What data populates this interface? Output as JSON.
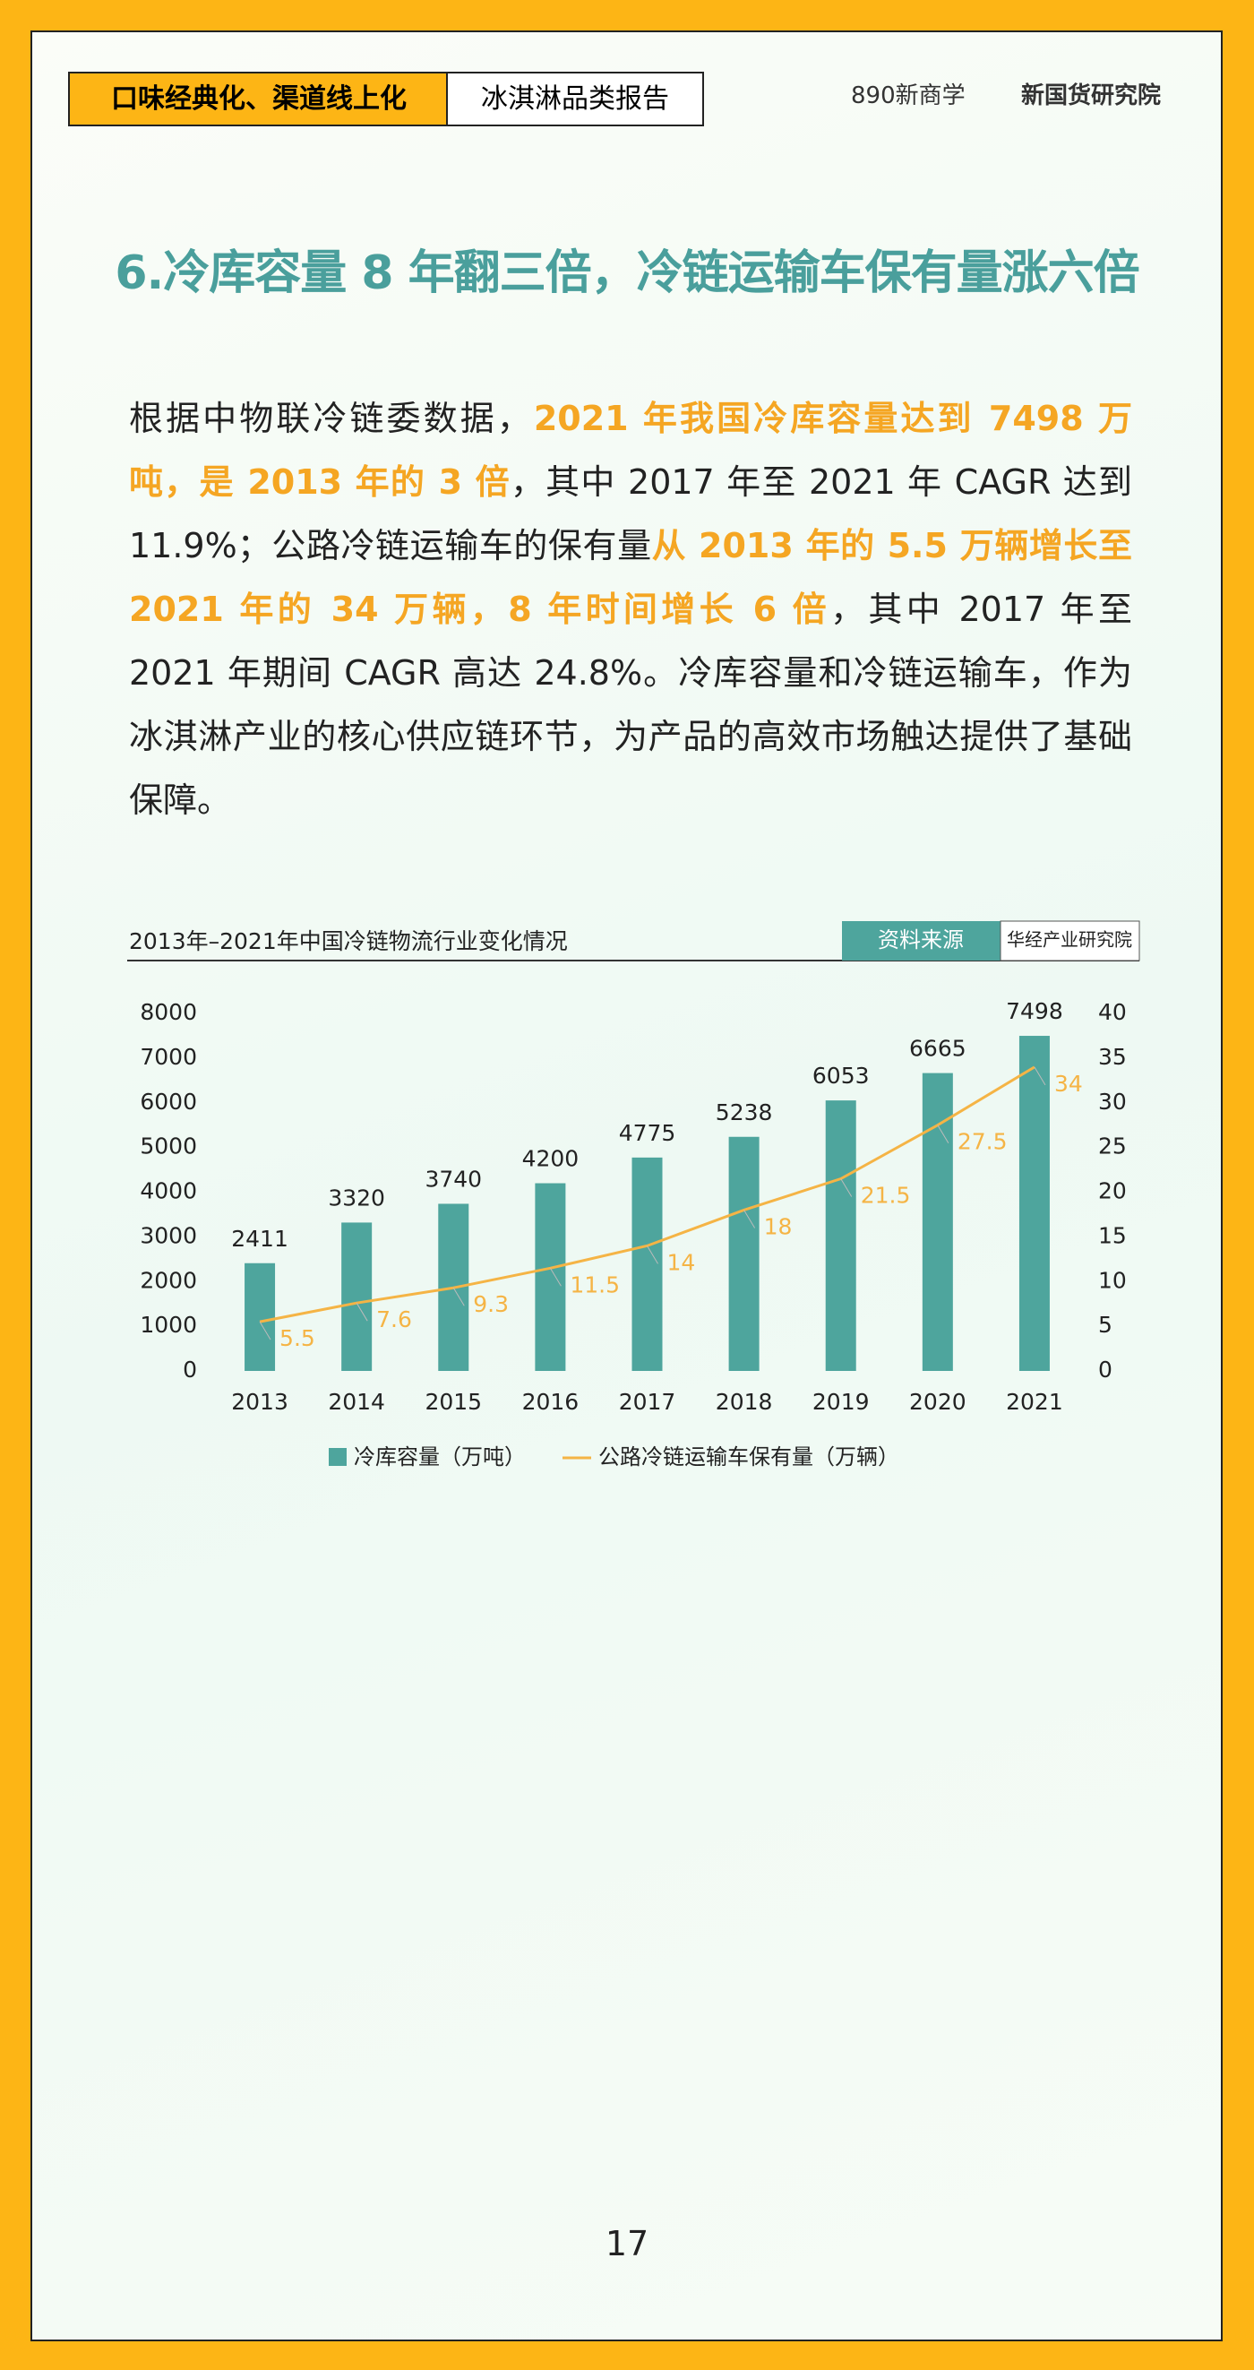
{
  "header": {
    "tag": "口味经典化、渠道线上化",
    "report": "冰淇淋品类报告",
    "logos": [
      "890新商学",
      "新国货研究院"
    ]
  },
  "title": "6.冷库容量 8 年翻三倍，冷链运输车保有量涨六倍",
  "paragraph": [
    {
      "text": "根据中物联冷链委数据，",
      "highlight": false
    },
    {
      "text": "2021 年我国冷库容量达到 7498 万吨，是 2013 年的 3 倍",
      "highlight": true
    },
    {
      "text": "，其中 2017 年至 2021 年 CAGR 达到 11.9%；公路冷链运输车的保有量",
      "highlight": false
    },
    {
      "text": "从 2013 年的 5.5 万辆增长至 2021 年的 34 万辆，8 年时间增长 6 倍",
      "highlight": true
    },
    {
      "text": "，其中 2017 年至 2021 年期间 CAGR 高达 24.8%。冷库容量和冷链运输车，作为冰淇淋产业的核心供应链环节，为产品的高效市场触达提供了基础保障。",
      "highlight": false
    }
  ],
  "chart_data": {
    "type": "bar",
    "title": "2013年–2021年中国冷链物流行业变化情况",
    "source_label": "资料来源",
    "source": "华经产业研究院",
    "categories": [
      "2013",
      "2014",
      "2015",
      "2016",
      "2017",
      "2018",
      "2019",
      "2020",
      "2021"
    ],
    "series": [
      {
        "name": "冷库容量（万吨）",
        "color": "#4ea59d",
        "values": [
          2411,
          3320,
          3740,
          4200,
          4775,
          5238,
          6053,
          6665,
          7498
        ]
      },
      {
        "name": "公路冷链运输车保有量（万辆）",
        "color": "#f5b445",
        "type": "line",
        "axis": "y2",
        "values": [
          5.5,
          7.6,
          9.3,
          11.5,
          14,
          18,
          21.5,
          27.5,
          34
        ]
      }
    ],
    "ylim": [
      0,
      8000
    ],
    "yticks": [
      0,
      1000,
      2000,
      3000,
      4000,
      5000,
      6000,
      7000,
      8000
    ],
    "y2lim": [
      0,
      40
    ],
    "y2ticks": [
      0,
      5,
      10,
      15,
      20,
      25,
      30,
      35,
      40
    ]
  },
  "page_number": "17"
}
